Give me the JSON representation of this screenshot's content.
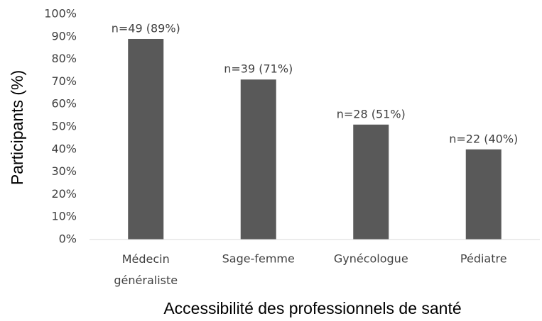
{
  "chart_data": {
    "type": "bar",
    "categories": [
      "Médecin généraliste",
      "Sage-femme",
      "Gynécologue",
      "Pédiatre"
    ],
    "values": [
      89,
      71,
      51,
      40
    ],
    "value_labels": [
      "n=49 (89%)",
      "n=39 (71%)",
      "n=28 (51%)",
      "n=22 (40%)"
    ],
    "color": "#595959",
    "xlabel": "Accessibilité des professionnels de santé",
    "ylabel": "Participants (%)",
    "ylim": [
      0,
      100
    ],
    "yticks": [
      {
        "value": 0,
        "label": "0%"
      },
      {
        "value": 10,
        "label": "10%"
      },
      {
        "value": 20,
        "label": "20%"
      },
      {
        "value": 30,
        "label": "30%"
      },
      {
        "value": 40,
        "label": "40%"
      },
      {
        "value": 50,
        "label": "50%"
      },
      {
        "value": 60,
        "label": "60%"
      },
      {
        "value": 70,
        "label": "70%"
      },
      {
        "value": 80,
        "label": "80%"
      },
      {
        "value": 90,
        "label": "90%"
      },
      {
        "value": 100,
        "label": "100%"
      }
    ],
    "grid": false
  }
}
